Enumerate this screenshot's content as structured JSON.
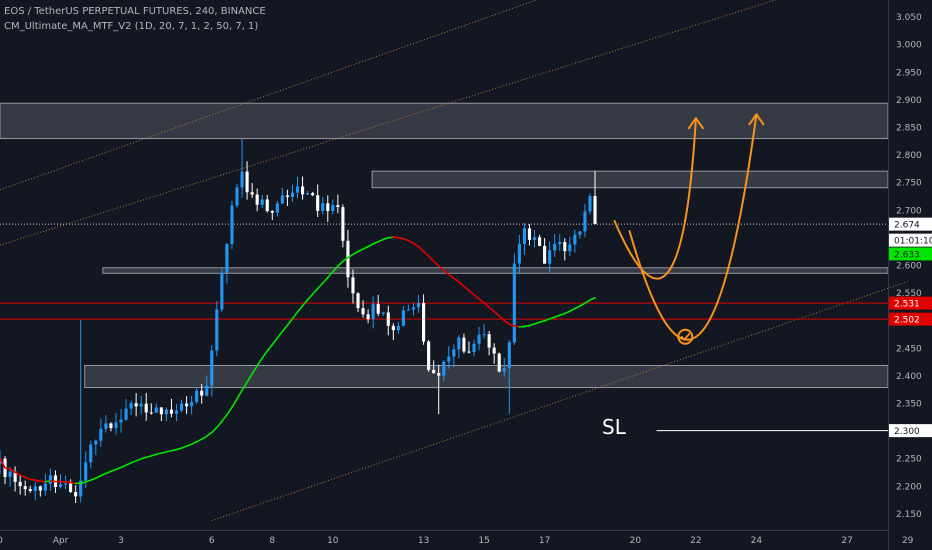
{
  "header": {
    "title": "EOS / TetherUS PERPETUAL FUTURES, 240, BINANCE",
    "indicator": "CM_Ultimate_MA_MTF_V2 (1D, 20, 7, 1, 2, 50, 7, 1)"
  },
  "colors": {
    "background": "#131722",
    "up": "#2196f3",
    "down": "#ffffff",
    "ma_up": "#00e600",
    "ma_down": "#e50000",
    "zone": "#787b86",
    "channel": "#c8803a",
    "arrows": "#f7931a",
    "red_line": "#e00000",
    "axis_text": "#b2b5be"
  },
  "chart_data": {
    "type": "candlestick",
    "title": "EOS / TetherUS PERPETUAL FUTURES, 240, BINANCE",
    "y_scale": "linear",
    "ylim": [
      2.12,
      3.08
    ],
    "xlim_days": [
      30.0,
      59.35
    ],
    "y_ticks": [
      "3.050",
      "3.000",
      "2.950",
      "2.900",
      "2.850",
      "2.800",
      "2.750",
      "2.700",
      "2.650",
      "2.600",
      "2.550",
      "2.500",
      "2.450",
      "2.400",
      "2.350",
      "2.300",
      "2.250",
      "2.200",
      "2.150"
    ],
    "x_ticks": [
      {
        "day": 30,
        "label": "0"
      },
      {
        "day": 32,
        "label": "Apr"
      },
      {
        "day": 34,
        "label": "3"
      },
      {
        "day": 37,
        "label": "6"
      },
      {
        "day": 39,
        "label": "8"
      },
      {
        "day": 41,
        "label": "10"
      },
      {
        "day": 44,
        "label": "13"
      },
      {
        "day": 46,
        "label": "15"
      },
      {
        "day": 48,
        "label": "17"
      },
      {
        "day": 51,
        "label": "20"
      },
      {
        "day": 53,
        "label": "22"
      },
      {
        "day": 55,
        "label": "24"
      },
      {
        "day": 58,
        "label": "27"
      },
      {
        "day": 60,
        "label": "29"
      }
    ],
    "keyframes_close": [
      [
        30.0,
        2.24
      ],
      [
        30.5,
        2.2
      ],
      [
        31.0,
        2.19
      ],
      [
        31.5,
        2.21
      ],
      [
        32.0,
        2.21
      ],
      [
        32.6,
        2.19
      ],
      [
        33.0,
        2.27
      ],
      [
        33.5,
        2.31
      ],
      [
        34.0,
        2.32
      ],
      [
        34.5,
        2.35
      ],
      [
        35.0,
        2.34
      ],
      [
        35.5,
        2.33
      ],
      [
        36.0,
        2.35
      ],
      [
        36.5,
        2.37
      ],
      [
        36.8,
        2.38
      ],
      [
        37.0,
        2.44
      ],
      [
        37.2,
        2.53
      ],
      [
        37.4,
        2.62
      ],
      [
        37.6,
        2.68
      ],
      [
        37.8,
        2.74
      ],
      [
        38.0,
        2.76
      ],
      [
        38.3,
        2.72
      ],
      [
        38.6,
        2.71
      ],
      [
        38.9,
        2.7
      ],
      [
        39.2,
        2.72
      ],
      [
        39.5,
        2.73
      ],
      [
        39.9,
        2.74
      ],
      [
        40.3,
        2.73
      ],
      [
        40.6,
        2.7
      ],
      [
        40.9,
        2.71
      ],
      [
        41.2,
        2.7
      ],
      [
        41.4,
        2.62
      ],
      [
        41.7,
        2.53
      ],
      [
        42.0,
        2.5
      ],
      [
        42.3,
        2.52
      ],
      [
        42.7,
        2.51
      ],
      [
        43.0,
        2.47
      ],
      [
        43.4,
        2.53
      ],
      [
        43.8,
        2.53
      ],
      [
        44.0,
        2.47
      ],
      [
        44.2,
        2.41
      ],
      [
        44.5,
        2.4
      ],
      [
        44.8,
        2.43
      ],
      [
        45.1,
        2.46
      ],
      [
        45.4,
        2.44
      ],
      [
        45.8,
        2.47
      ],
      [
        46.1,
        2.46
      ],
      [
        46.4,
        2.43
      ],
      [
        46.6,
        2.41
      ],
      [
        46.8,
        2.42
      ],
      [
        47.0,
        2.6
      ],
      [
        47.3,
        2.66
      ],
      [
        47.7,
        2.64
      ],
      [
        48.0,
        2.61
      ],
      [
        48.4,
        2.63
      ],
      [
        48.8,
        2.64
      ],
      [
        49.2,
        2.65
      ],
      [
        49.4,
        2.72
      ],
      [
        49.6,
        2.73
      ],
      [
        49.8,
        2.69
      ]
    ],
    "current_price": "2.674",
    "countdown": "01:01:10",
    "ma_value_label": "2.633",
    "ma_period_candles": 36,
    "horizontal_lines": [
      {
        "value": 2.531,
        "label": "2.531",
        "color": "#e00000"
      },
      {
        "value": 2.502,
        "label": "2.502",
        "color": "#e00000"
      },
      {
        "value": 2.3,
        "label": "2.300",
        "color": "#ffffff",
        "x_start_day": 51.7
      }
    ],
    "zones": [
      {
        "low": 2.829,
        "high": 2.893,
        "x_start_day": 30.0
      },
      {
        "low": 2.74,
        "high": 2.77,
        "x_start_day": 42.3
      },
      {
        "low": 2.585,
        "high": 2.595,
        "x_start_day": 33.4
      },
      {
        "low": 2.378,
        "high": 2.418,
        "x_start_day": 32.8
      }
    ],
    "channel_lines": [
      {
        "from": [
          30.0,
          2.736
        ],
        "to": [
          60.0,
          3.318
        ]
      },
      {
        "from": [
          30.0,
          2.636
        ],
        "to": [
          60.0,
          3.156
        ]
      },
      {
        "from": [
          37.0,
          2.137
        ],
        "to": [
          60.0,
          2.57
        ]
      }
    ],
    "annotation": "SL"
  }
}
